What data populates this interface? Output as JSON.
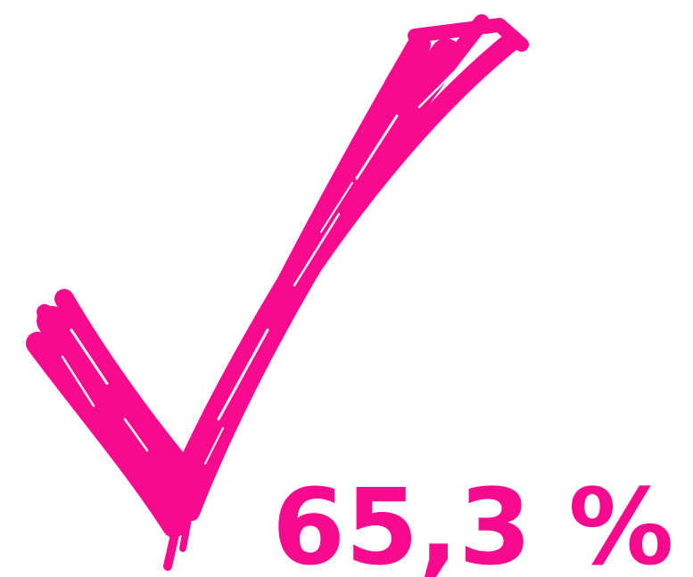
{
  "label": "65,3 %"
}
